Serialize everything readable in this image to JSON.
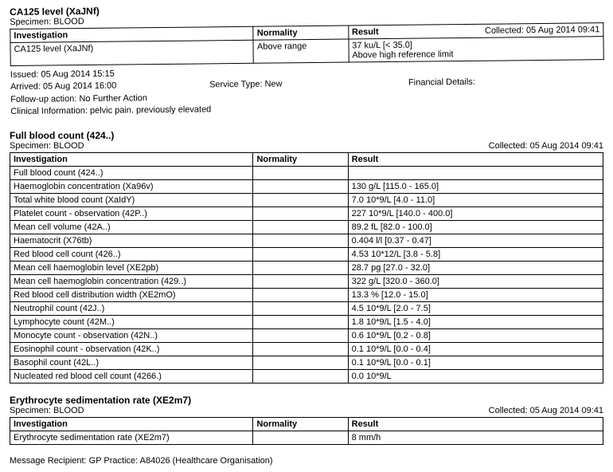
{
  "headers": {
    "investigation": "Investigation",
    "normality": "Normality",
    "result": "Result"
  },
  "section1": {
    "title": "CA125 level (XaJNf)",
    "specimen": "Specimen: BLOOD",
    "collected": "Collected: 05 Aug 2014 09:41",
    "row": {
      "investigation": "CA125 level (XaJNf)",
      "normality": "Above range",
      "result_line1": "37 ku/L [< 35.0]",
      "result_line2": "Above high reference limit"
    },
    "meta": {
      "issued": "Issued: 05 Aug 2014 15:15",
      "arrived": "Arrived: 05 Aug 2014 16:00",
      "service_type": "Service Type: New",
      "financial": "Financial Details:",
      "followup": "Follow-up action: No Further Action",
      "clinical": "Clinical Information: pelvic pain. previously elevated"
    }
  },
  "section2": {
    "title": "Full blood count (424..)",
    "specimen": "Specimen: BLOOD",
    "collected": "Collected: 05 Aug 2014 09:41",
    "rows": [
      {
        "inv": "Full blood count (424..)",
        "norm": "",
        "res": ""
      },
      {
        "inv": "Haemoglobin concentration (Xa96v)",
        "norm": "",
        "res": "130 g/L [115.0 - 165.0]"
      },
      {
        "inv": "Total white blood count (XaIdY)",
        "norm": "",
        "res": "7.0 10*9/L [4.0 - 11.0]"
      },
      {
        "inv": "Platelet count - observation (42P..)",
        "norm": "",
        "res": "227 10*9/L [140.0 - 400.0]"
      },
      {
        "inv": "Mean cell volume (42A..)",
        "norm": "",
        "res": "89.2 fL [82.0 - 100.0]"
      },
      {
        "inv": "Haematocrit (X76tb)",
        "norm": "",
        "res": "0.404 l/l [0.37 - 0.47]"
      },
      {
        "inv": "Red blood cell count (426..)",
        "norm": "",
        "res": "4.53 10*12/L [3.8 - 5.8]"
      },
      {
        "inv": "Mean cell haemoglobin level (XE2pb)",
        "norm": "",
        "res": "28.7 pg [27.0 - 32.0]"
      },
      {
        "inv": "Mean cell haemoglobin concentration (429..)",
        "norm": "",
        "res": "322 g/L [320.0 - 360.0]"
      },
      {
        "inv": "Red blood cell distribution width (XE2mO)",
        "norm": "",
        "res": "13.3 % [12.0 - 15.0]"
      },
      {
        "inv": "Neutrophil count (42J..)",
        "norm": "",
        "res": "4.5 10*9/L [2.0 - 7.5]"
      },
      {
        "inv": "Lymphocyte count (42M..)",
        "norm": "",
        "res": "1.8 10*9/L [1.5 - 4.0]"
      },
      {
        "inv": "Monocyte count - observation (42N..)",
        "norm": "",
        "res": "0.6 10*9/L [0.2 - 0.8]"
      },
      {
        "inv": "Eosinophil count - observation (42K..)",
        "norm": "",
        "res": "0.1 10*9/L [0.0 - 0.4]"
      },
      {
        "inv": "Basophil count (42L..)",
        "norm": "",
        "res": "0.1 10*9/L [0.0 - 0.1]"
      },
      {
        "inv": "Nucleated red blood cell count (4266.)",
        "norm": "",
        "res": "0.0 10*9/L"
      }
    ]
  },
  "section3": {
    "title": "Erythrocyte sedimentation rate (XE2m7)",
    "specimen": "Specimen: BLOOD",
    "collected": "Collected: 05 Aug 2014 09:41",
    "row": {
      "inv": "Erythrocyte sedimentation rate (XE2m7)",
      "norm": "",
      "res": "8 mm/h"
    }
  },
  "footer": "Message Recipient: GP Practice: A84026 (Healthcare Organisation)"
}
